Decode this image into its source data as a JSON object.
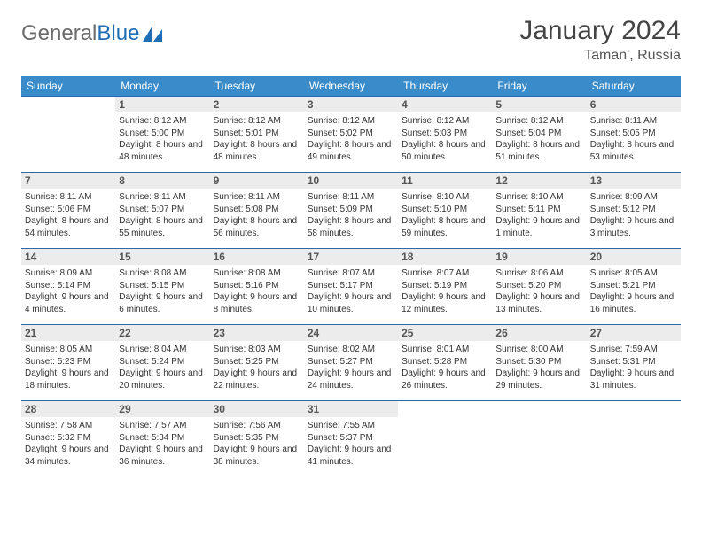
{
  "logo": {
    "text_general": "General",
    "text_blue": "Blue"
  },
  "title": "January 2024",
  "location": "Taman', Russia",
  "colors": {
    "header_bg": "#3a8bc9",
    "header_text": "#ffffff",
    "daynum_bg": "#ececec",
    "row_border": "#2d6aa3",
    "body_text": "#333333",
    "logo_gray": "#6b6b6b",
    "logo_blue": "#1f6db5"
  },
  "days_of_week": [
    "Sunday",
    "Monday",
    "Tuesday",
    "Wednesday",
    "Thursday",
    "Friday",
    "Saturday"
  ],
  "weeks": [
    [
      {
        "n": "",
        "sr": "",
        "ss": "",
        "dl": ""
      },
      {
        "n": "1",
        "sr": "Sunrise: 8:12 AM",
        "ss": "Sunset: 5:00 PM",
        "dl": "Daylight: 8 hours and 48 minutes."
      },
      {
        "n": "2",
        "sr": "Sunrise: 8:12 AM",
        "ss": "Sunset: 5:01 PM",
        "dl": "Daylight: 8 hours and 48 minutes."
      },
      {
        "n": "3",
        "sr": "Sunrise: 8:12 AM",
        "ss": "Sunset: 5:02 PM",
        "dl": "Daylight: 8 hours and 49 minutes."
      },
      {
        "n": "4",
        "sr": "Sunrise: 8:12 AM",
        "ss": "Sunset: 5:03 PM",
        "dl": "Daylight: 8 hours and 50 minutes."
      },
      {
        "n": "5",
        "sr": "Sunrise: 8:12 AM",
        "ss": "Sunset: 5:04 PM",
        "dl": "Daylight: 8 hours and 51 minutes."
      },
      {
        "n": "6",
        "sr": "Sunrise: 8:11 AM",
        "ss": "Sunset: 5:05 PM",
        "dl": "Daylight: 8 hours and 53 minutes."
      }
    ],
    [
      {
        "n": "7",
        "sr": "Sunrise: 8:11 AM",
        "ss": "Sunset: 5:06 PM",
        "dl": "Daylight: 8 hours and 54 minutes."
      },
      {
        "n": "8",
        "sr": "Sunrise: 8:11 AM",
        "ss": "Sunset: 5:07 PM",
        "dl": "Daylight: 8 hours and 55 minutes."
      },
      {
        "n": "9",
        "sr": "Sunrise: 8:11 AM",
        "ss": "Sunset: 5:08 PM",
        "dl": "Daylight: 8 hours and 56 minutes."
      },
      {
        "n": "10",
        "sr": "Sunrise: 8:11 AM",
        "ss": "Sunset: 5:09 PM",
        "dl": "Daylight: 8 hours and 58 minutes."
      },
      {
        "n": "11",
        "sr": "Sunrise: 8:10 AM",
        "ss": "Sunset: 5:10 PM",
        "dl": "Daylight: 8 hours and 59 minutes."
      },
      {
        "n": "12",
        "sr": "Sunrise: 8:10 AM",
        "ss": "Sunset: 5:11 PM",
        "dl": "Daylight: 9 hours and 1 minute."
      },
      {
        "n": "13",
        "sr": "Sunrise: 8:09 AM",
        "ss": "Sunset: 5:12 PM",
        "dl": "Daylight: 9 hours and 3 minutes."
      }
    ],
    [
      {
        "n": "14",
        "sr": "Sunrise: 8:09 AM",
        "ss": "Sunset: 5:14 PM",
        "dl": "Daylight: 9 hours and 4 minutes."
      },
      {
        "n": "15",
        "sr": "Sunrise: 8:08 AM",
        "ss": "Sunset: 5:15 PM",
        "dl": "Daylight: 9 hours and 6 minutes."
      },
      {
        "n": "16",
        "sr": "Sunrise: 8:08 AM",
        "ss": "Sunset: 5:16 PM",
        "dl": "Daylight: 9 hours and 8 minutes."
      },
      {
        "n": "17",
        "sr": "Sunrise: 8:07 AM",
        "ss": "Sunset: 5:17 PM",
        "dl": "Daylight: 9 hours and 10 minutes."
      },
      {
        "n": "18",
        "sr": "Sunrise: 8:07 AM",
        "ss": "Sunset: 5:19 PM",
        "dl": "Daylight: 9 hours and 12 minutes."
      },
      {
        "n": "19",
        "sr": "Sunrise: 8:06 AM",
        "ss": "Sunset: 5:20 PM",
        "dl": "Daylight: 9 hours and 13 minutes."
      },
      {
        "n": "20",
        "sr": "Sunrise: 8:05 AM",
        "ss": "Sunset: 5:21 PM",
        "dl": "Daylight: 9 hours and 16 minutes."
      }
    ],
    [
      {
        "n": "21",
        "sr": "Sunrise: 8:05 AM",
        "ss": "Sunset: 5:23 PM",
        "dl": "Daylight: 9 hours and 18 minutes."
      },
      {
        "n": "22",
        "sr": "Sunrise: 8:04 AM",
        "ss": "Sunset: 5:24 PM",
        "dl": "Daylight: 9 hours and 20 minutes."
      },
      {
        "n": "23",
        "sr": "Sunrise: 8:03 AM",
        "ss": "Sunset: 5:25 PM",
        "dl": "Daylight: 9 hours and 22 minutes."
      },
      {
        "n": "24",
        "sr": "Sunrise: 8:02 AM",
        "ss": "Sunset: 5:27 PM",
        "dl": "Daylight: 9 hours and 24 minutes."
      },
      {
        "n": "25",
        "sr": "Sunrise: 8:01 AM",
        "ss": "Sunset: 5:28 PM",
        "dl": "Daylight: 9 hours and 26 minutes."
      },
      {
        "n": "26",
        "sr": "Sunrise: 8:00 AM",
        "ss": "Sunset: 5:30 PM",
        "dl": "Daylight: 9 hours and 29 minutes."
      },
      {
        "n": "27",
        "sr": "Sunrise: 7:59 AM",
        "ss": "Sunset: 5:31 PM",
        "dl": "Daylight: 9 hours and 31 minutes."
      }
    ],
    [
      {
        "n": "28",
        "sr": "Sunrise: 7:58 AM",
        "ss": "Sunset: 5:32 PM",
        "dl": "Daylight: 9 hours and 34 minutes."
      },
      {
        "n": "29",
        "sr": "Sunrise: 7:57 AM",
        "ss": "Sunset: 5:34 PM",
        "dl": "Daylight: 9 hours and 36 minutes."
      },
      {
        "n": "30",
        "sr": "Sunrise: 7:56 AM",
        "ss": "Sunset: 5:35 PM",
        "dl": "Daylight: 9 hours and 38 minutes."
      },
      {
        "n": "31",
        "sr": "Sunrise: 7:55 AM",
        "ss": "Sunset: 5:37 PM",
        "dl": "Daylight: 9 hours and 41 minutes."
      },
      {
        "n": "",
        "sr": "",
        "ss": "",
        "dl": ""
      },
      {
        "n": "",
        "sr": "",
        "ss": "",
        "dl": ""
      },
      {
        "n": "",
        "sr": "",
        "ss": "",
        "dl": ""
      }
    ]
  ]
}
